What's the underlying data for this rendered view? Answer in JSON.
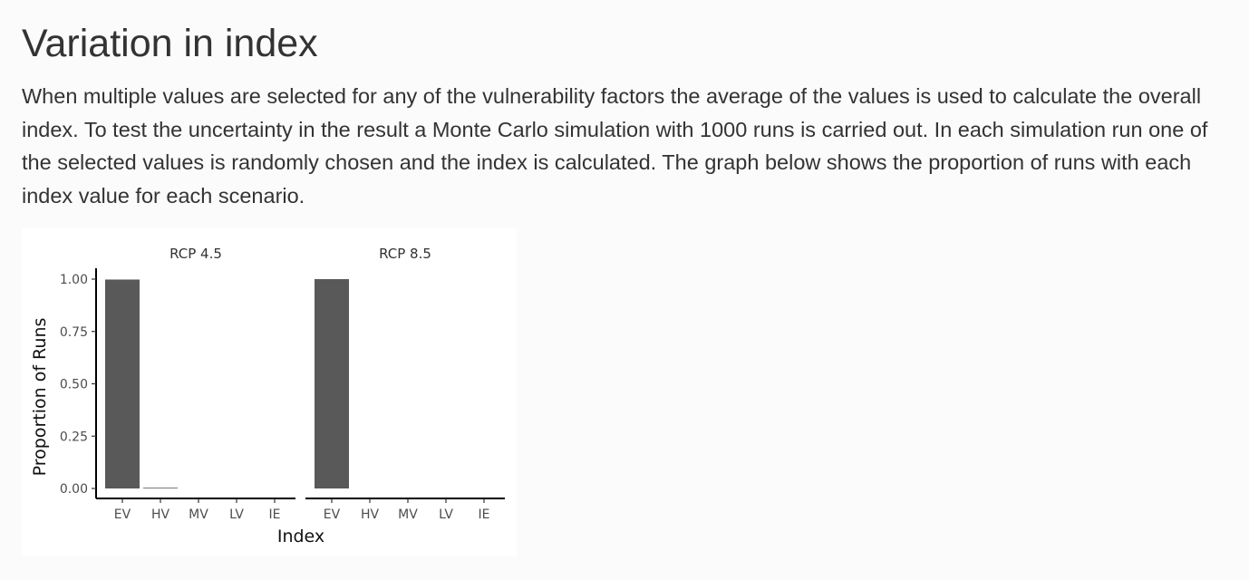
{
  "section": {
    "title": "Variation in index",
    "description": "When multiple values are selected for any of the vulnerability factors the average of the values is used to calculate the overall index. To test the uncertainty in the result a Monte Carlo simulation with 1000 runs is carried out. In each simulation run one of the selected values is randomly chosen and the index is calculated. The graph below shows the proportion of runs with each index value for each scenario."
  },
  "chart_data": {
    "type": "bar",
    "xlabel": "Index",
    "ylabel": "Proportion of Runs",
    "categories": [
      "EV",
      "HV",
      "MV",
      "LV",
      "IE"
    ],
    "ylim": [
      0,
      1
    ],
    "yticks": [
      "0.00",
      "0.25",
      "0.50",
      "0.75",
      "1.00"
    ],
    "ytick_values": [
      0,
      0.25,
      0.5,
      0.75,
      1.0
    ],
    "grid": false,
    "bar_color": "#595959",
    "panels": [
      {
        "name": "RCP 4.5",
        "values": [
          0.998,
          0.002,
          0,
          0,
          0
        ]
      },
      {
        "name": "RCP 8.5",
        "values": [
          1.0,
          0,
          0,
          0,
          0
        ]
      }
    ]
  }
}
